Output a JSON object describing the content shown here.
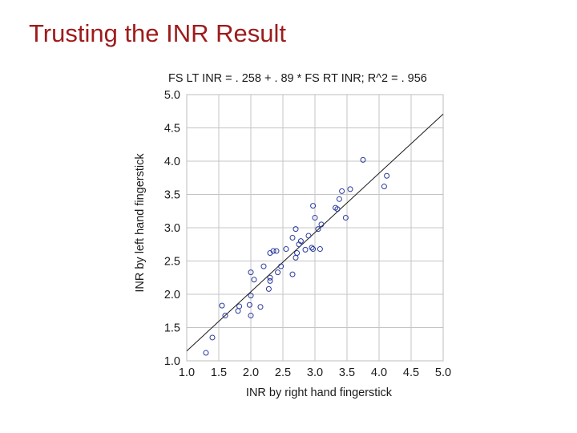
{
  "slide": {
    "title": "Trusting the INR Result"
  },
  "chart_data": {
    "type": "scatter",
    "title": "FS LT INR = . 258 + . 89 * FS RT INR; R^2 = . 956",
    "xlabel": "INR by right hand fingerstick",
    "ylabel": "INR by left hand fingerstick",
    "xlim": [
      1.0,
      5.0
    ],
    "ylim": [
      1.0,
      5.0
    ],
    "xticks": [
      "1.0",
      "1.5",
      "2.0",
      "2.5",
      "3.0",
      "3.5",
      "4.0",
      "4.5",
      "5.0"
    ],
    "yticks": [
      "1.0",
      "1.5",
      "2.0",
      "2.5",
      "3.0",
      "3.5",
      "4.0",
      "4.5",
      "5.0"
    ],
    "grid": true,
    "regression": {
      "intercept": 0.258,
      "slope": 0.89
    },
    "marker_color": "#2b3a9c",
    "points": [
      [
        1.3,
        1.12
      ],
      [
        1.4,
        1.35
      ],
      [
        1.55,
        1.83
      ],
      [
        1.6,
        1.68
      ],
      [
        1.8,
        1.75
      ],
      [
        1.82,
        1.82
      ],
      [
        1.98,
        1.84
      ],
      [
        2.0,
        1.68
      ],
      [
        2.0,
        1.98
      ],
      [
        2.05,
        2.22
      ],
      [
        2.0,
        2.33
      ],
      [
        2.15,
        1.81
      ],
      [
        2.2,
        2.42
      ],
      [
        2.28,
        2.08
      ],
      [
        2.3,
        2.2
      ],
      [
        2.3,
        2.25
      ],
      [
        2.3,
        2.62
      ],
      [
        2.35,
        2.65
      ],
      [
        2.4,
        2.65
      ],
      [
        2.42,
        2.33
      ],
      [
        2.47,
        2.42
      ],
      [
        2.55,
        2.68
      ],
      [
        2.65,
        2.85
      ],
      [
        2.65,
        2.3
      ],
      [
        2.7,
        2.55
      ],
      [
        2.72,
        2.62
      ],
      [
        2.75,
        2.75
      ],
      [
        2.7,
        2.98
      ],
      [
        2.78,
        2.8
      ],
      [
        2.85,
        2.67
      ],
      [
        2.9,
        2.88
      ],
      [
        2.95,
        2.7
      ],
      [
        2.97,
        2.68
      ],
      [
        2.97,
        3.33
      ],
      [
        3.0,
        3.15
      ],
      [
        3.05,
        2.98
      ],
      [
        3.08,
        2.68
      ],
      [
        3.1,
        3.05
      ],
      [
        3.32,
        3.3
      ],
      [
        3.35,
        3.28
      ],
      [
        3.38,
        3.43
      ],
      [
        3.42,
        3.55
      ],
      [
        3.48,
        3.15
      ],
      [
        3.55,
        3.58
      ],
      [
        3.75,
        4.02
      ],
      [
        4.08,
        3.62
      ],
      [
        4.12,
        3.78
      ]
    ]
  }
}
